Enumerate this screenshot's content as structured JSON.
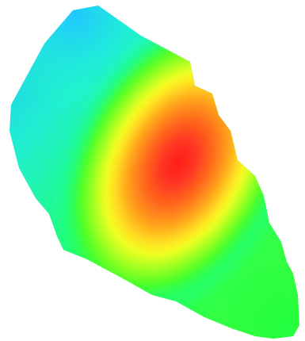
{
  "colors": {
    "background": "#ffffff",
    "core": "#ff2020",
    "inner": "#ff6a1f",
    "mid": "#ffb21f",
    "yellow": "#ffff20",
    "lime": "#9cff20",
    "green": "#20ff4a",
    "teal": "#20ffc0",
    "cyan": "#20d8ff"
  },
  "figure": {
    "icon": "heatmap-blob"
  }
}
